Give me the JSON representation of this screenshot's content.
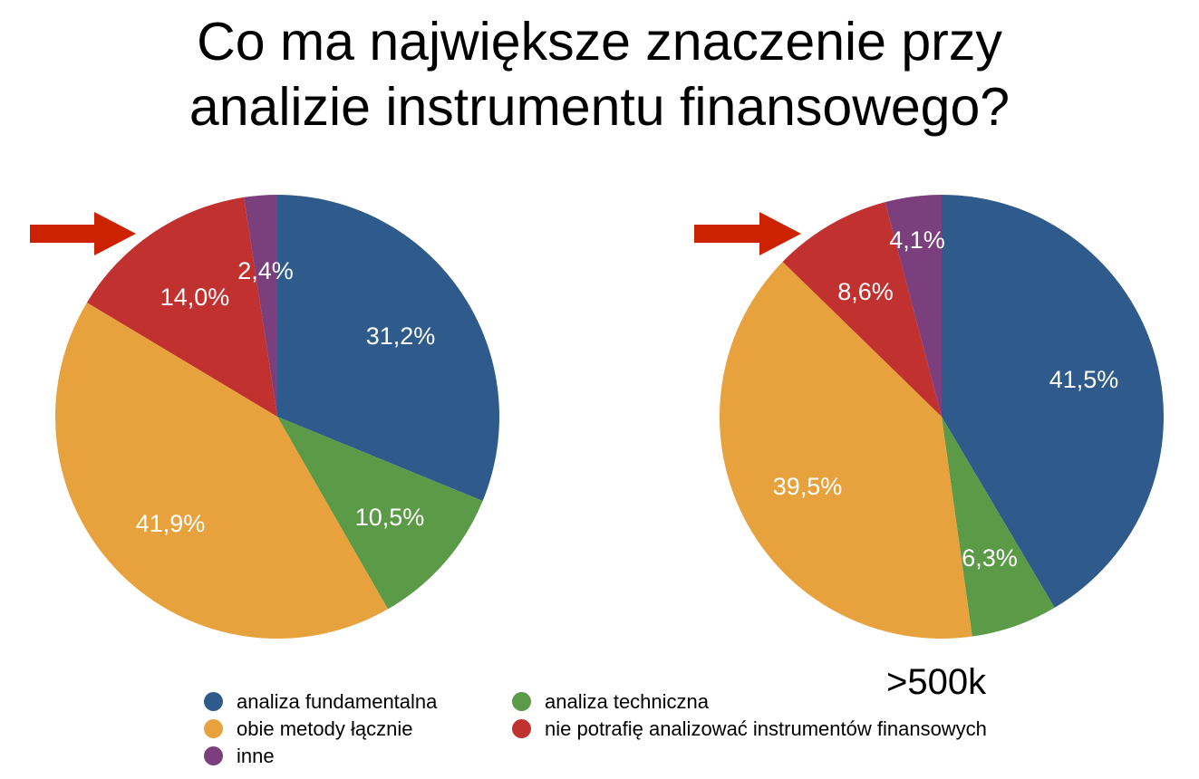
{
  "title_line1": "Co ma największe znaczenie przy",
  "title_line2": "analizie instrumentu finansowego?",
  "subtitle_right": ">500k",
  "colors": {
    "blue": "#2E5A8C",
    "green": "#5B9A47",
    "orange": "#E8A23D",
    "red": "#C0312F",
    "purple": "#7B3F7E",
    "arrow": "#CC2200"
  },
  "legend": [
    {
      "label": "analiza fundamentalna",
      "color": "#2E5A8C"
    },
    {
      "label": "analiza techniczna",
      "color": "#5B9A47"
    },
    {
      "label": "obie metody łącznie",
      "color": "#E8A23D"
    },
    {
      "label": "nie potrafię analizować instrumentów finansowych",
      "color": "#C0312F"
    },
    {
      "label": "inne",
      "color": "#7B3F7E"
    }
  ],
  "chart_data": [
    {
      "type": "pie",
      "title": "",
      "categories": [
        "analiza fundamentalna",
        "analiza techniczna",
        "obie metody łącznie",
        "nie potrafię analizować instrumentów finansowych",
        "inne"
      ],
      "values": [
        31.2,
        10.5,
        41.9,
        14.0,
        2.4
      ],
      "labels": [
        "31,2%",
        "10,5%",
        "41,9%",
        "14,0%",
        "2,4%"
      ],
      "colors": [
        "#2E5A8C",
        "#5B9A47",
        "#E8A23D",
        "#C0312F",
        "#7B3F7E"
      ],
      "highlight": "nie potrafię analizować instrumentów finansowych"
    },
    {
      "type": "pie",
      "title": ">500k",
      "categories": [
        "analiza fundamentalna",
        "analiza techniczna",
        "obie metody łącznie",
        "nie potrafię analizować instrumentów finansowych",
        "inne"
      ],
      "values": [
        41.5,
        6.3,
        39.5,
        8.6,
        4.1
      ],
      "labels": [
        "41,5%",
        "6,3%",
        "39,5%",
        "8,6%",
        "4,1%"
      ],
      "colors": [
        "#2E5A8C",
        "#5B9A47",
        "#E8A23D",
        "#C0312F",
        "#7B3F7E"
      ],
      "highlight": "nie potrafię analizować instrumentów finansowych"
    }
  ]
}
